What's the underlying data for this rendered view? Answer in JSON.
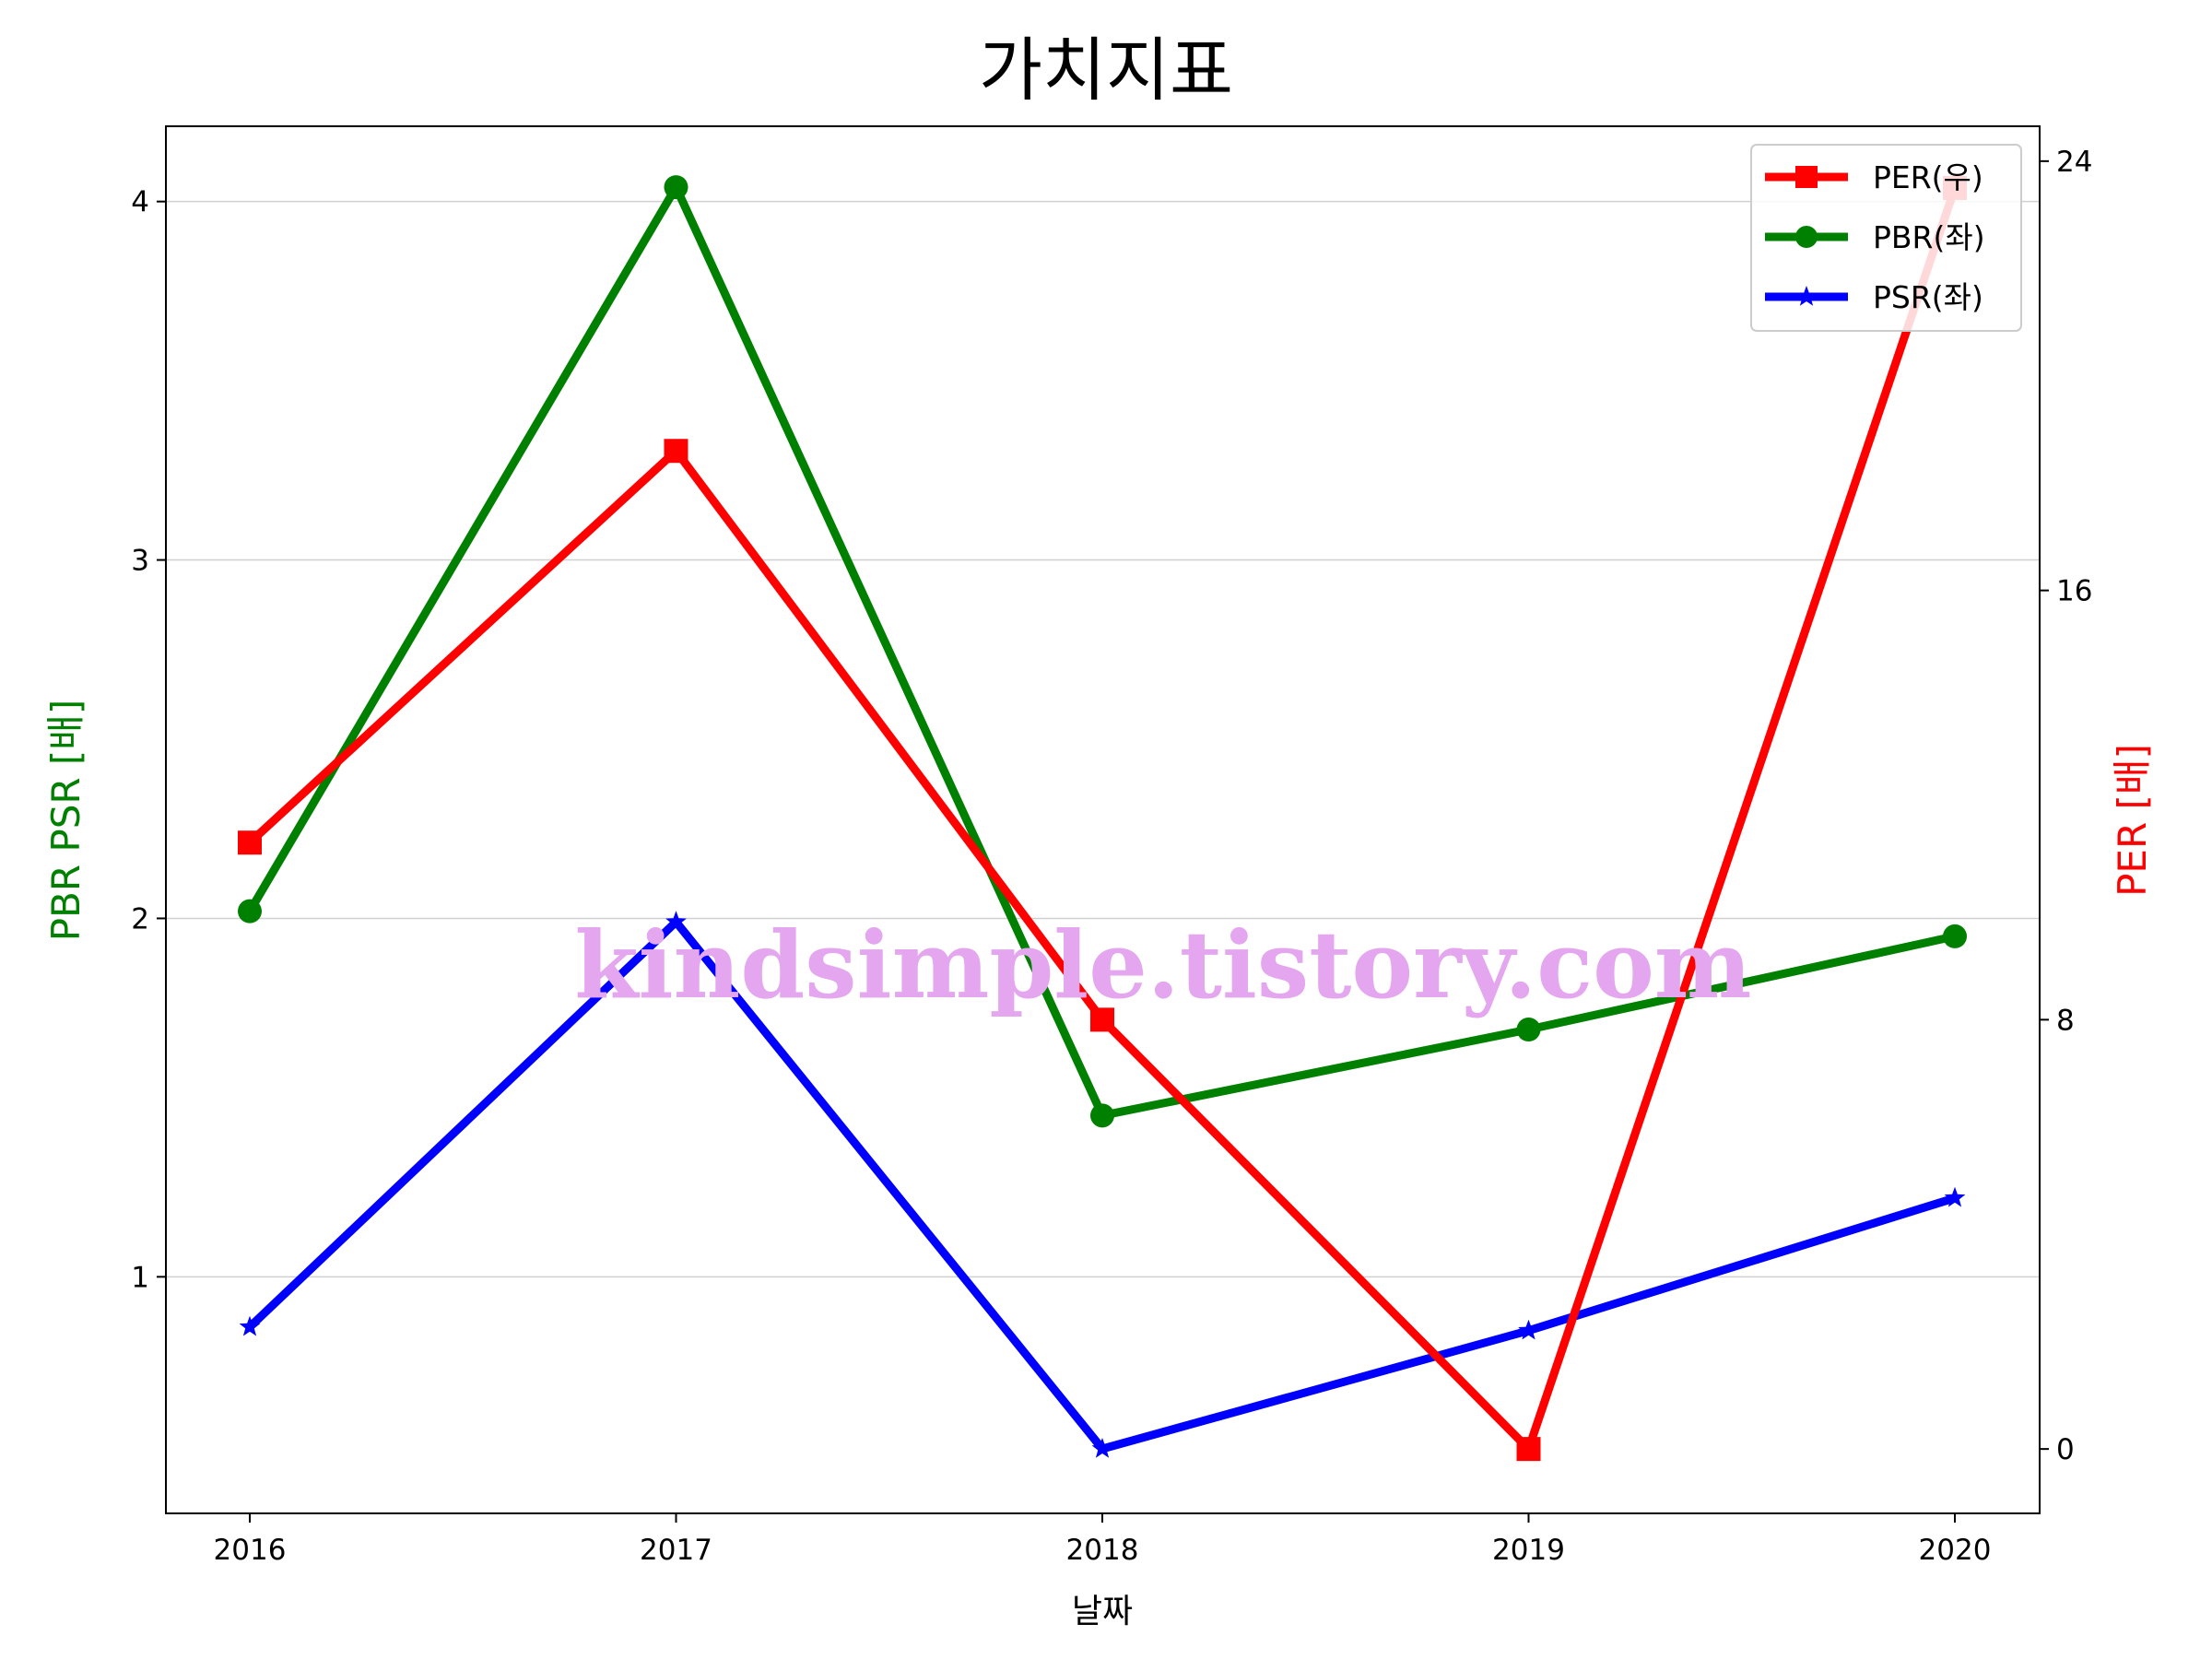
{
  "chart_data": {
    "type": "line",
    "title": "가치지표",
    "xlabel": "날짜",
    "ylabel_left": "PBR PSR [배]",
    "ylabel_right": "PER [배]",
    "x": [
      "2016",
      "2017",
      "2018",
      "2019",
      "2020"
    ],
    "ylim_left": [
      0.34,
      4.21
    ],
    "yticks_left": [
      "1",
      "2",
      "3",
      "4"
    ],
    "ylim_right": [
      -1.2,
      24.65
    ],
    "yticks_right": [
      "0",
      "8",
      "16",
      "24"
    ],
    "grid": "horizontal",
    "legend_position": "top-right",
    "series": [
      {
        "name": "PER(우)",
        "axis": "right",
        "color": "#ff0000",
        "marker": "square",
        "values": [
          11.3,
          18.6,
          8.0,
          0.0,
          23.5
        ]
      },
      {
        "name": "PBR(좌)",
        "axis": "left",
        "color": "#008000",
        "marker": "circle",
        "values": [
          2.02,
          4.04,
          1.45,
          1.69,
          1.95
        ]
      },
      {
        "name": "PSR(좌)",
        "axis": "left",
        "color": "#0000ff",
        "marker": "star",
        "values": [
          0.86,
          1.99,
          0.52,
          0.85,
          1.22
        ]
      }
    ]
  },
  "watermark": "kindsimple.tistory.com"
}
